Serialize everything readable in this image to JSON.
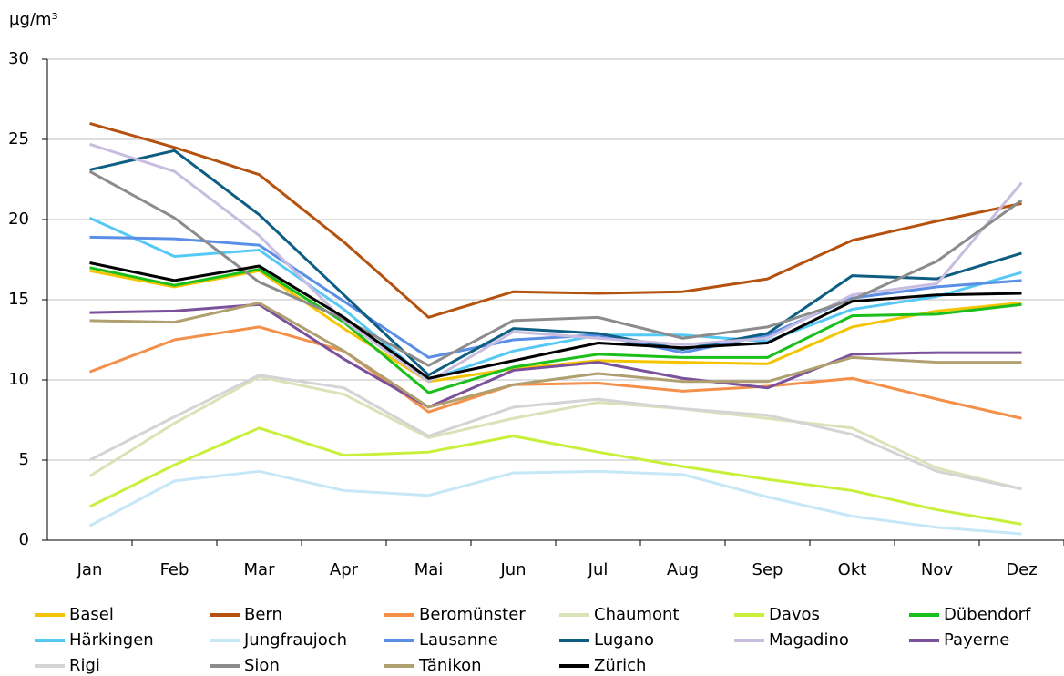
{
  "chart_data": {
    "type": "line",
    "y_label": "µg/m³",
    "categories": [
      "Jan",
      "Feb",
      "Mar",
      "Apr",
      "Mai",
      "Jun",
      "Jul",
      "Aug",
      "Sep",
      "Okt",
      "Nov",
      "Dez"
    ],
    "ylim": [
      0,
      30
    ],
    "yticks": [
      0,
      5,
      10,
      15,
      20,
      25,
      30
    ],
    "grid": true,
    "series": [
      {
        "name": "Basel",
        "color": "#f5c400",
        "values": [
          16.8,
          15.8,
          16.8,
          13.2,
          9.9,
          10.7,
          11.2,
          11.1,
          11.0,
          13.3,
          14.3,
          14.8
        ]
      },
      {
        "name": "Bern",
        "color": "#b5520f",
        "values": [
          26.0,
          24.5,
          22.8,
          18.6,
          13.9,
          15.5,
          15.4,
          15.5,
          16.3,
          18.7,
          19.9,
          21.0
        ]
      },
      {
        "name": "Beromünster",
        "color": "#f4904a",
        "values": [
          10.5,
          12.5,
          13.3,
          11.8,
          8.0,
          9.7,
          9.8,
          9.3,
          9.6,
          10.1,
          8.8,
          7.6
        ]
      },
      {
        "name": "Chaumont",
        "color": "#d9e3b8",
        "values": [
          4.0,
          7.3,
          10.2,
          9.1,
          6.4,
          7.6,
          8.6,
          8.2,
          7.6,
          7.0,
          4.5,
          3.2
        ]
      },
      {
        "name": "Davos",
        "color": "#c8f03a",
        "values": [
          2.1,
          4.7,
          7.0,
          5.3,
          5.5,
          6.5,
          5.5,
          4.6,
          3.8,
          3.1,
          1.9,
          1.0
        ]
      },
      {
        "name": "Dübendorf",
        "color": "#1bbf1b",
        "values": [
          17.0,
          15.9,
          16.9,
          13.6,
          9.2,
          10.8,
          11.6,
          11.4,
          11.4,
          14.0,
          14.1,
          14.7
        ]
      },
      {
        "name": "Härkingen",
        "color": "#56c8f5",
        "values": [
          20.1,
          17.7,
          18.1,
          14.4,
          10.0,
          11.8,
          12.8,
          12.8,
          12.4,
          14.4,
          15.2,
          16.7
        ]
      },
      {
        "name": "Jungfraujoch",
        "color": "#c5e7f7",
        "values": [
          0.9,
          3.7,
          4.3,
          3.1,
          2.8,
          4.2,
          4.3,
          4.1,
          2.7,
          1.5,
          0.8,
          0.4
        ]
      },
      {
        "name": "Lausanne",
        "color": "#5b8fe6",
        "values": [
          18.9,
          18.8,
          18.4,
          14.9,
          11.4,
          12.5,
          12.8,
          11.7,
          12.8,
          15.1,
          15.8,
          16.2
        ]
      },
      {
        "name": "Lugano",
        "color": "#0d5e82",
        "values": [
          23.1,
          24.3,
          20.3,
          15.3,
          10.3,
          13.2,
          12.9,
          11.9,
          12.9,
          16.5,
          16.3,
          17.9
        ]
      },
      {
        "name": "Magadino",
        "color": "#c8bde0",
        "values": [
          24.7,
          23.0,
          19.0,
          13.7,
          9.9,
          13.0,
          12.6,
          12.2,
          12.6,
          15.3,
          16.0,
          22.3
        ]
      },
      {
        "name": "Payerne",
        "color": "#7b519c",
        "values": [
          14.2,
          14.3,
          14.7,
          11.3,
          8.3,
          10.6,
          11.1,
          10.1,
          9.5,
          11.6,
          11.7,
          11.7
        ]
      },
      {
        "name": "Rigi",
        "color": "#d4d4d4",
        "values": [
          5.0,
          7.7,
          10.3,
          9.5,
          6.5,
          8.3,
          8.8,
          8.2,
          7.8,
          6.6,
          4.3,
          3.2
        ]
      },
      {
        "name": "Sion",
        "color": "#8c8c8c",
        "values": [
          23.0,
          20.1,
          16.1,
          13.8,
          10.9,
          13.7,
          13.9,
          12.6,
          13.3,
          15.0,
          17.4,
          21.2
        ]
      },
      {
        "name": "Tänikon",
        "color": "#b0a070",
        "values": [
          13.7,
          13.6,
          14.8,
          11.8,
          8.3,
          9.7,
          10.4,
          9.9,
          9.9,
          11.4,
          11.1,
          11.1
        ]
      },
      {
        "name": "Zürich",
        "color": "#000000",
        "values": [
          17.3,
          16.2,
          17.1,
          13.9,
          10.1,
          11.2,
          12.3,
          12.0,
          12.3,
          14.9,
          15.3,
          15.4
        ]
      }
    ]
  }
}
